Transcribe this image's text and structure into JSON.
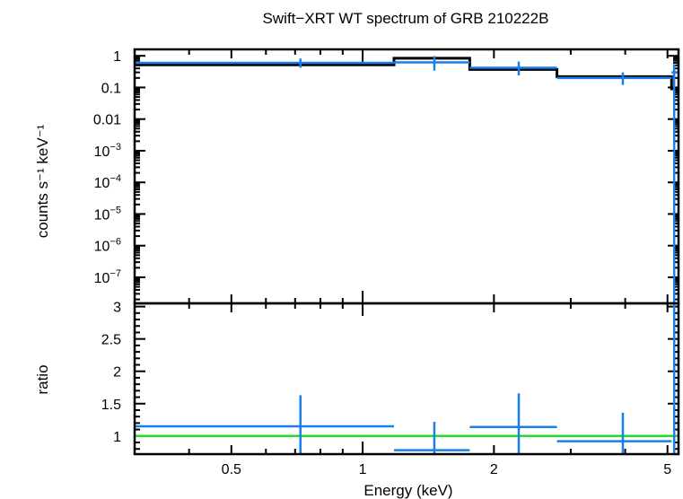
{
  "chart_data": [
    {
      "type": "line",
      "panel": "spectrum",
      "title": "Swift−XRT WT spectrum of GRB 210222B",
      "xlabel": "Energy (keV)",
      "ylabel": "counts s⁻¹ keV⁻¹",
      "x_scale": "log",
      "y_scale": "log",
      "xlim": [
        0.3,
        5.3
      ],
      "ylim": [
        1.5e-08,
        1.6
      ],
      "y_tick_labels": [
        {
          "v": 1,
          "t": "1"
        },
        {
          "v": 0.1,
          "t": "0.1"
        },
        {
          "v": 0.01,
          "t": "0.01"
        },
        {
          "v": 0.001,
          "t": "10",
          "sup": "−3"
        },
        {
          "v": 0.0001,
          "t": "10",
          "sup": "−4"
        },
        {
          "v": 1e-05,
          "t": "10",
          "sup": "−5"
        },
        {
          "v": 1e-06,
          "t": "10",
          "sup": "−6"
        },
        {
          "v": 1e-07,
          "t": "10",
          "sup": "−7"
        }
      ],
      "series": [
        {
          "kind": "data",
          "color": "#1a7fe8",
          "points": [
            {
              "x": 0.72,
              "xlo": 0.3,
              "xhi": 1.18,
              "y": 0.6,
              "ylo": 0.42,
              "yhi": 0.82
            },
            {
              "x": 1.46,
              "xlo": 1.18,
              "xhi": 1.76,
              "y": 0.62,
              "ylo": 0.34,
              "yhi": 0.98
            },
            {
              "x": 2.28,
              "xlo": 1.76,
              "xhi": 2.79,
              "y": 0.42,
              "ylo": 0.24,
              "yhi": 0.66
            },
            {
              "x": 3.95,
              "xlo": 2.79,
              "xhi": 5.11,
              "y": 0.2,
              "ylo": 0.12,
              "yhi": 0.3
            },
            {
              "x": 5.18,
              "xlo": 5.11,
              "xhi": 5.3,
              "y": 0.3,
              "ylo": 1.5e-08,
              "yhi": 0.55
            }
          ]
        },
        {
          "kind": "model",
          "color": "#000000",
          "steps": [
            {
              "xlo": 0.3,
              "xhi": 1.18,
              "y": 0.52
            },
            {
              "xlo": 1.18,
              "xhi": 1.76,
              "y": 0.84
            },
            {
              "xlo": 1.76,
              "xhi": 2.79,
              "y": 0.37
            },
            {
              "xlo": 2.79,
              "xhi": 5.11,
              "y": 0.22
            },
            {
              "xlo": 5.11,
              "xhi": 5.3,
              "y": 0.09
            }
          ]
        }
      ]
    },
    {
      "type": "scatter",
      "panel": "ratio",
      "xlabel": "Energy (keV)",
      "ylabel": "ratio",
      "x_scale": "log",
      "xlim": [
        0.3,
        5.3
      ],
      "ylim": [
        0.72,
        3.05
      ],
      "x_tick_labels": [
        {
          "v": 0.5,
          "t": "0.5"
        },
        {
          "v": 1,
          "t": "1"
        },
        {
          "v": 2,
          "t": "2"
        },
        {
          "v": 5,
          "t": "5"
        }
      ],
      "y_tick_labels": [
        {
          "v": 1,
          "t": "1"
        },
        {
          "v": 1.5,
          "t": "1.5"
        },
        {
          "v": 2,
          "t": "2"
        },
        {
          "v": 2.5,
          "t": "2.5"
        },
        {
          "v": 3,
          "t": "3"
        }
      ],
      "reference_line": {
        "y": 1,
        "color": "#22dd22"
      },
      "series": [
        {
          "kind": "ratio",
          "color": "#1a7fe8",
          "points": [
            {
              "x": 0.72,
              "xlo": 0.3,
              "xhi": 1.18,
              "y": 1.15,
              "ylo": 0.72,
              "yhi": 1.63
            },
            {
              "x": 1.46,
              "xlo": 1.18,
              "xhi": 1.76,
              "y": 0.78,
              "ylo": 0.72,
              "yhi": 1.22
            },
            {
              "x": 2.28,
              "xlo": 1.76,
              "xhi": 2.79,
              "y": 1.14,
              "ylo": 0.72,
              "yhi": 1.66
            },
            {
              "x": 3.95,
              "xlo": 2.79,
              "xhi": 5.11,
              "y": 0.92,
              "ylo": 0.72,
              "yhi": 1.36
            },
            {
              "x": 5.18,
              "xlo": 5.11,
              "xhi": 5.3,
              "y": 3.05,
              "ylo": 0.72,
              "yhi": 3.05
            }
          ]
        }
      ]
    }
  ]
}
